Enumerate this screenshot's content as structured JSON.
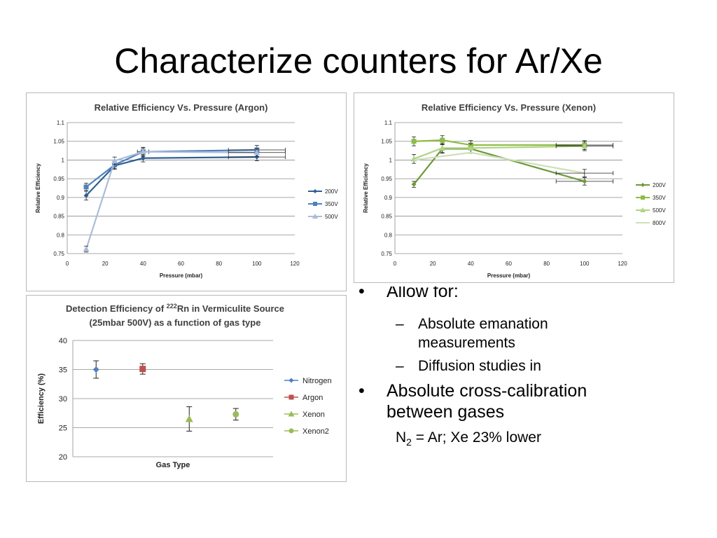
{
  "slide": {
    "title": "Characterize counters for Ar/Xe",
    "bullets": {
      "b1_text": "Allow for:",
      "b1_sub1_line1": "Absolute emanation",
      "b1_sub1_line2": "measurements",
      "b1_sub2": "Diffusion studies in",
      "b2_line1": "Absolute cross-calibration",
      "b2_line2": "between gases",
      "note_prefix": "N",
      "note_sub": "2",
      "note_rest": " = Ar; Xe 23% lower",
      "bullet_symbol": "•",
      "dash_symbol": "–"
    }
  },
  "chart_data": [
    {
      "id": "argon",
      "type": "line",
      "title": "Relative Efficiency Vs. Pressure (Argon)",
      "xlabel": "Pressure (mbar)",
      "ylabel": "Relative Efficiency",
      "xlim": [
        0,
        120
      ],
      "ylim": [
        0.75,
        1.1
      ],
      "xticks": [
        0,
        20,
        40,
        60,
        80,
        100,
        120
      ],
      "xtick_labels": [
        "0",
        "20",
        "40",
        "60",
        "80",
        "100",
        "120"
      ],
      "yticks": [
        0.75,
        0.8,
        0.85,
        0.9,
        0.95,
        1,
        1.05,
        1.1
      ],
      "ytick_labels": [
        "0.75",
        "0.8",
        "0.85",
        "0.9",
        "0.95",
        "1",
        "1.05",
        "1.1"
      ],
      "grid": true,
      "legend": "right",
      "series": [
        {
          "name": "200V",
          "marker": "diamond",
          "color": "#2f5f93",
          "x": [
            10,
            25,
            40,
            100
          ],
          "y": [
            0.905,
            0.985,
            1.005,
            1.008
          ],
          "xerr": [
            0,
            0,
            0,
            15
          ],
          "yerr": [
            0.012,
            0.01,
            0.01,
            0.01
          ]
        },
        {
          "name": "350V",
          "marker": "square",
          "color": "#4f81bd",
          "x": [
            10,
            25,
            40,
            100
          ],
          "y": [
            0.928,
            0.987,
            1.022,
            1.027
          ],
          "xerr": [
            0,
            0,
            3,
            15
          ],
          "yerr": [
            0.01,
            0.01,
            0.01,
            0.012
          ]
        },
        {
          "name": "500V",
          "marker": "triangle",
          "color": "#aabcda",
          "x": [
            10,
            25,
            40,
            100
          ],
          "y": [
            0.762,
            0.998,
            1.022,
            1.02
          ],
          "xerr": [
            0,
            0,
            0,
            15
          ],
          "yerr": [
            0.008,
            0.01,
            0.012,
            0.01
          ]
        }
      ]
    },
    {
      "id": "xenon",
      "type": "line",
      "title": "Relative Efficiency Vs. Pressure (Xenon)",
      "xlabel": "Pressure (mbar)",
      "ylabel": "Relative Efficiency",
      "xlim": [
        0,
        120
      ],
      "ylim": [
        0.75,
        1.1
      ],
      "xticks": [
        0,
        20,
        40,
        60,
        80,
        100,
        120
      ],
      "xtick_labels": [
        "0",
        "20",
        "40",
        "60",
        "80",
        "100",
        "120"
      ],
      "yticks": [
        0.75,
        0.8,
        0.85,
        0.9,
        0.95,
        1,
        1.05,
        1.1
      ],
      "ytick_labels": [
        "0.75",
        "0.8",
        "0.85",
        "0.9",
        "0.95",
        "1",
        "1.05",
        "1.1"
      ],
      "grid": true,
      "legend": "right",
      "series": [
        {
          "name": "200V",
          "marker": "diamond",
          "color": "#6e9a3a",
          "x": [
            10,
            25,
            40,
            100
          ],
          "y": [
            0.935,
            1.03,
            1.03,
            0.943
          ],
          "xerr": [
            0,
            0,
            0,
            15
          ],
          "yerr": [
            0.008,
            0.012,
            0.012,
            0.01
          ]
        },
        {
          "name": "350V",
          "marker": "square",
          "color": "#8fbc45",
          "x": [
            10,
            25,
            40,
            100
          ],
          "y": [
            1.05,
            1.053,
            1.04,
            1.04
          ],
          "xerr": [
            0,
            0,
            0,
            15
          ],
          "yerr": [
            0.012,
            0.012,
            0.012,
            0.012
          ]
        },
        {
          "name": "500V",
          "marker": "triangle",
          "color": "#b0d485",
          "x": [
            10,
            25,
            40,
            100
          ],
          "y": [
            1.003,
            1.032,
            1.032,
            1.037
          ],
          "xerr": [
            0,
            0,
            0,
            15
          ],
          "yerr": [
            0.012,
            0.012,
            0.012,
            0.012
          ]
        },
        {
          "name": "800V",
          "marker": "none",
          "color": "#cfe0b8",
          "x": [
            10,
            25,
            40,
            100
          ],
          "y": [
            1.0,
            1.01,
            1.02,
            0.965
          ],
          "xerr": [
            0,
            0,
            0,
            15
          ],
          "yerr": [
            0,
            0,
            0,
            0.01
          ]
        }
      ]
    },
    {
      "id": "detection",
      "type": "scatter",
      "title_line1_prefix": "Detection Efficiency of ",
      "title_sup": "222",
      "title_line1_suffix": "Rn in Vermiculite Source",
      "title_line2": "(25mbar 500V) as a function of gas type",
      "xlabel": "Gas Type",
      "ylabel": "Efficiency (%)",
      "ylim": [
        20,
        40
      ],
      "yticks": [
        20,
        25,
        30,
        35,
        40
      ],
      "ytick_labels": [
        "20",
        "25",
        "30",
        "35",
        "40"
      ],
      "grid": true,
      "legend": "right",
      "series": [
        {
          "name": "Nitrogen",
          "marker": "diamond",
          "color": "#4f81bd",
          "x": 1,
          "y": 35,
          "yerr": 1.5
        },
        {
          "name": "Argon",
          "marker": "square",
          "color": "#c0504d",
          "x": 2,
          "y": 35.1,
          "yerr": 0.9
        },
        {
          "name": "Xenon",
          "marker": "triangle",
          "color": "#9bbb59",
          "x": 3,
          "y": 26.5,
          "yerr": 2.1
        },
        {
          "name": "Xenon2",
          "marker": "circle",
          "color": "#9bbb59",
          "x": 4,
          "y": 27.3,
          "yerr": 1.0
        }
      ],
      "xlim": [
        0.5,
        4.8
      ]
    }
  ]
}
